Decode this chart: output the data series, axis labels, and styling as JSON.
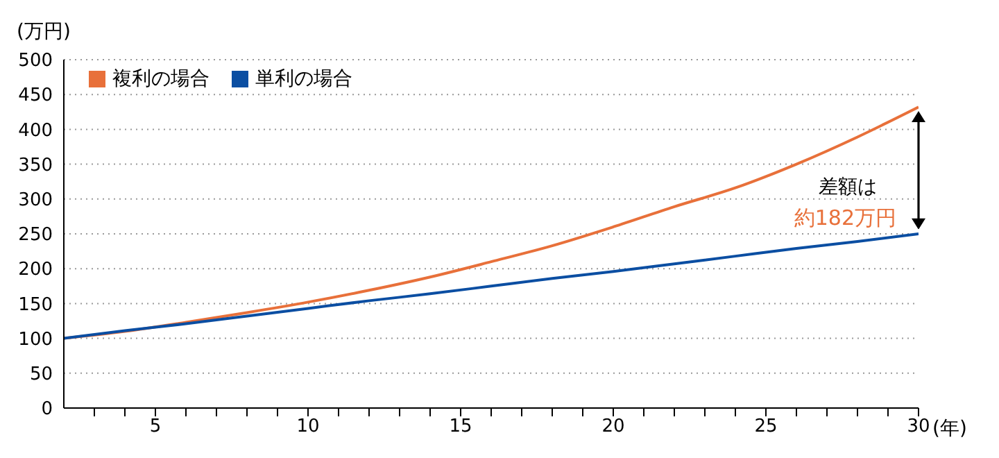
{
  "chart_data": {
    "type": "line",
    "ylabel": "(万円)",
    "xlabel": "(年)",
    "x": [
      2,
      4,
      6,
      8,
      10,
      12,
      14,
      16,
      18,
      20,
      22,
      24,
      26,
      28,
      30
    ],
    "series": [
      {
        "name": "複利の場合",
        "color": "#e8703a",
        "values": [
          100,
          110,
          123,
          137,
          152,
          169,
          188,
          210,
          233,
          260,
          289,
          316,
          350,
          389,
          432
        ]
      },
      {
        "name": "単利の場合",
        "color": "#0b4ea2",
        "values": [
          100,
          111,
          121,
          132,
          143,
          154,
          164,
          175,
          186,
          196,
          207,
          218,
          229,
          239,
          250
        ]
      }
    ],
    "xlim": [
      2,
      30
    ],
    "xticks": [
      {
        "value": 3,
        "label": null
      },
      {
        "value": 4,
        "label": null
      },
      5,
      {
        "value": 6,
        "label": null
      },
      {
        "value": 7,
        "label": null
      },
      {
        "value": 8,
        "label": null
      },
      {
        "value": 9,
        "label": null
      },
      10,
      {
        "value": 11,
        "label": null
      },
      {
        "value": 12,
        "label": null
      },
      {
        "value": 13,
        "label": null
      },
      {
        "value": 14,
        "label": null
      },
      15,
      {
        "value": 16,
        "label": null
      },
      {
        "value": 17,
        "label": null
      },
      {
        "value": 18,
        "label": null
      },
      {
        "value": 19,
        "label": null
      },
      20,
      {
        "value": 21,
        "label": null
      },
      {
        "value": 22,
        "label": null
      },
      {
        "value": 23,
        "label": null
      },
      {
        "value": 24,
        "label": null
      },
      25,
      {
        "value": 26,
        "label": null
      },
      {
        "value": 27,
        "label": null
      },
      {
        "value": 28,
        "label": null
      },
      {
        "value": 29,
        "label": null
      },
      30
    ],
    "ylim": [
      0,
      500
    ],
    "yticks": [
      0,
      50,
      100,
      150,
      200,
      250,
      300,
      350,
      400,
      450,
      500
    ],
    "grid": "y",
    "legend": "top left",
    "marker": "none",
    "line_style": "solid",
    "annotations": [
      "差額は",
      "約182万円"
    ]
  }
}
